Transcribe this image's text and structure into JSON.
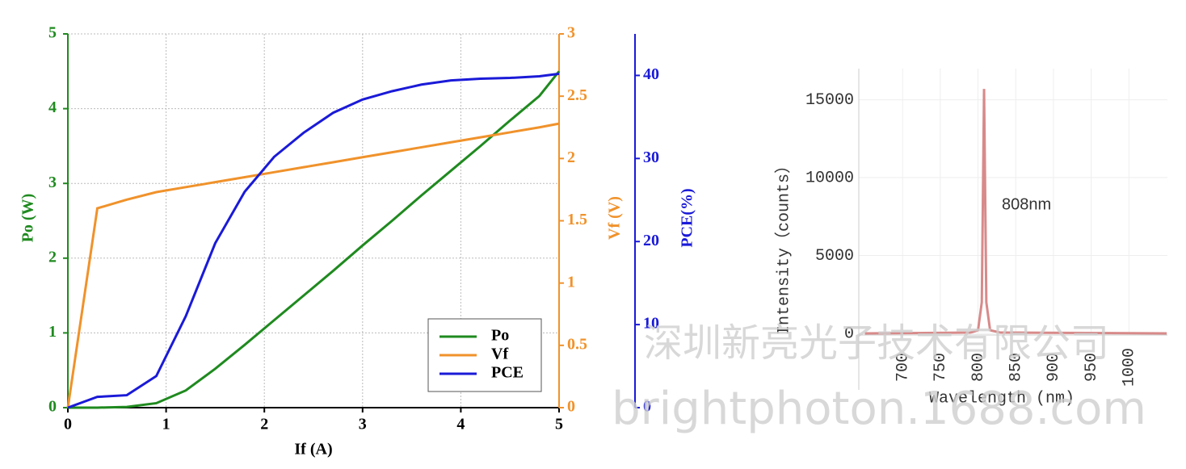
{
  "chart_data": [
    {
      "type": "line",
      "xlabel": "If (A)",
      "ylabel": "Po (W)",
      "y2label": "Vf (V)",
      "y3label": "PCE(%)",
      "x": [
        0,
        0.3,
        0.6,
        0.9,
        1.2,
        1.5,
        1.8,
        2.1,
        2.4,
        2.7,
        3,
        3.3,
        3.6,
        3.9,
        4.2,
        4.5,
        4.8,
        5
      ],
      "series": [
        {
          "name": "Po",
          "color": "#1f8a1f",
          "axis": "y",
          "values": [
            0,
            0,
            0.01,
            0.06,
            0.23,
            0.52,
            0.84,
            1.17,
            1.5,
            1.83,
            2.17,
            2.5,
            2.84,
            3.17,
            3.5,
            3.84,
            4.17,
            4.5
          ]
        },
        {
          "name": "Vf",
          "color": "#f0922b",
          "axis": "y2",
          "values": [
            0,
            1.6,
            1.67,
            1.73,
            1.77,
            1.81,
            1.85,
            1.89,
            1.93,
            1.97,
            2.01,
            2.05,
            2.09,
            2.13,
            2.17,
            2.21,
            2.25,
            2.28
          ]
        },
        {
          "name": "PCE",
          "color": "#1a1ad8",
          "axis": "y3",
          "values": [
            0,
            1.3,
            1.5,
            3.8,
            11,
            19.8,
            26,
            30.2,
            33.1,
            35.5,
            37.1,
            38.1,
            38.9,
            39.4,
            39.6,
            39.7,
            39.9,
            40.2
          ]
        }
      ],
      "xlim": [
        0,
        5
      ],
      "xticks": [
        0,
        1,
        2,
        3,
        4,
        5
      ],
      "ylim": [
        0,
        5
      ],
      "yticks": [
        0,
        1,
        2,
        3,
        4,
        5
      ],
      "y2lim": [
        0,
        3
      ],
      "y2ticks": [
        0,
        0.5,
        1,
        1.5,
        2,
        2.5,
        3
      ],
      "y3lim": [
        0,
        45
      ],
      "y3ticks": [
        0,
        10,
        20,
        30,
        40
      ],
      "grid": true,
      "legend": "lower right"
    },
    {
      "type": "line",
      "xlabel": "Wavelength (nm)",
      "ylabel": "Intensity（counts）",
      "annotation": "808nm",
      "x": [
        650,
        790,
        800,
        805,
        808,
        811,
        816,
        830,
        1050
      ],
      "series": [
        {
          "color": "#d88a8a",
          "values": [
            0,
            50,
            200,
            2000,
            15700,
            2000,
            200,
            50,
            0
          ]
        }
      ],
      "xlim": [
        642,
        1051
      ],
      "xticks": [
        700,
        750,
        800,
        850,
        900,
        950,
        1000
      ],
      "ylim": [
        0,
        17000
      ],
      "yticks": [
        0,
        5000,
        10000,
        15000
      ],
      "grid": true
    }
  ],
  "watermark": {
    "company": "深圳新亮光子技术有限公司",
    "site": "brightphoton.1688.com"
  }
}
